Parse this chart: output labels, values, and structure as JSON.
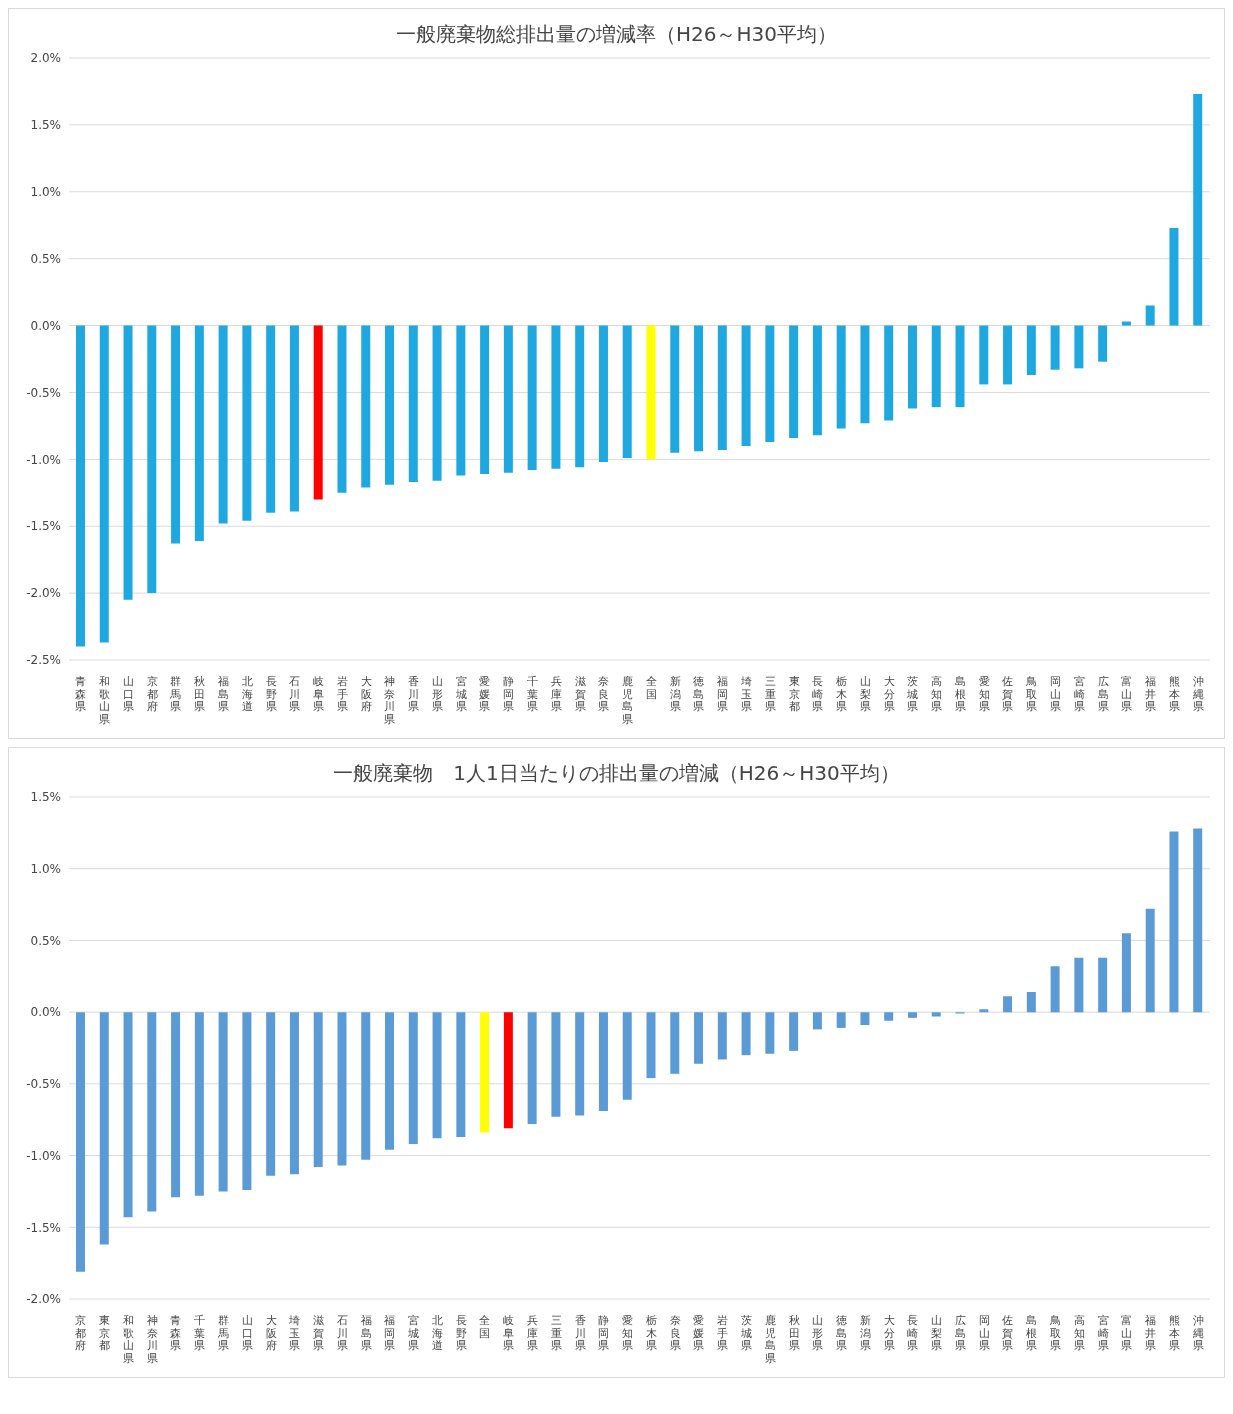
{
  "chart_data": [
    {
      "type": "bar",
      "title": "一般廃棄物総排出量の増減率（H26～H30平均）",
      "categories": [
        "青森県",
        "和歌山県",
        "山口県",
        "京都府",
        "群馬県",
        "秋田県",
        "福島県",
        "北海道",
        "長野県",
        "石川県",
        "岐阜県",
        "岩手県",
        "大阪府",
        "神奈川県",
        "香川県",
        "山形県",
        "宮城県",
        "愛媛県",
        "静岡県",
        "千葉県",
        "兵庫県",
        "滋賀県",
        "奈良県",
        "鹿児島県",
        "全国",
        "新潟県",
        "徳島県",
        "福岡県",
        "埼玉県",
        "三重県",
        "東京都",
        "長崎県",
        "栃木県",
        "山梨県",
        "大分県",
        "茨城県",
        "高知県",
        "島根県",
        "愛知県",
        "佐賀県",
        "鳥取県",
        "岡山県",
        "宮崎県",
        "広島県",
        "富山県",
        "福井県",
        "熊本県",
        "沖縄県"
      ],
      "values": [
        -2.4,
        -2.37,
        -2.05,
        -2.0,
        -1.63,
        -1.61,
        -1.48,
        -1.46,
        -1.4,
        -1.39,
        -1.3,
        -1.25,
        -1.21,
        -1.19,
        -1.17,
        -1.16,
        -1.12,
        -1.11,
        -1.1,
        -1.08,
        -1.07,
        -1.06,
        -1.02,
        -0.99,
        -1.0,
        -0.95,
        -0.94,
        -0.93,
        -0.9,
        -0.87,
        -0.84,
        -0.82,
        -0.77,
        -0.73,
        -0.71,
        -0.62,
        -0.61,
        -0.61,
        -0.44,
        -0.44,
        -0.37,
        -0.33,
        -0.32,
        -0.27,
        0.03,
        0.15,
        0.73,
        1.73
      ],
      "colors": [
        "#1fa8e0",
        "#1fa8e0",
        "#1fa8e0",
        "#1fa8e0",
        "#1fa8e0",
        "#1fa8e0",
        "#1fa8e0",
        "#1fa8e0",
        "#1fa8e0",
        "#1fa8e0",
        "#ff0000",
        "#1fa8e0",
        "#1fa8e0",
        "#1fa8e0",
        "#1fa8e0",
        "#1fa8e0",
        "#1fa8e0",
        "#1fa8e0",
        "#1fa8e0",
        "#1fa8e0",
        "#1fa8e0",
        "#1fa8e0",
        "#1fa8e0",
        "#1fa8e0",
        "#ffff00",
        "#1fa8e0",
        "#1fa8e0",
        "#1fa8e0",
        "#1fa8e0",
        "#1fa8e0",
        "#1fa8e0",
        "#1fa8e0",
        "#1fa8e0",
        "#1fa8e0",
        "#1fa8e0",
        "#1fa8e0",
        "#1fa8e0",
        "#1fa8e0",
        "#1fa8e0",
        "#1fa8e0",
        "#1fa8e0",
        "#1fa8e0",
        "#1fa8e0",
        "#1fa8e0",
        "#1fa8e0",
        "#1fa8e0",
        "#1fa8e0",
        "#1fa8e0"
      ],
      "ylim": [
        -2.5,
        2.0
      ],
      "yticks": [
        {
          "value": -2.5,
          "label": "-2.5%"
        },
        {
          "value": -2.0,
          "label": "-2.0%"
        },
        {
          "value": -1.5,
          "label": "-1.5%"
        },
        {
          "value": -1.0,
          "label": "-1.0%"
        },
        {
          "value": -0.5,
          "label": "-0.5%"
        },
        {
          "value": 0,
          "label": "0.0%"
        },
        {
          "value": 0.5,
          "label": "0.5%"
        },
        {
          "value": 1.0,
          "label": "1.0%"
        },
        {
          "value": 1.5,
          "label": "1.5%"
        },
        {
          "value": 2.0,
          "label": "2.0%"
        }
      ],
      "grid": "y"
    },
    {
      "type": "bar",
      "title": "一般廃棄物　1人1日当たりの排出量の増減（H26～H30平均）",
      "categories": [
        "京都府",
        "東京都",
        "和歌山県",
        "神奈川県",
        "青森県",
        "千葉県",
        "群馬県",
        "山口県",
        "大阪府",
        "埼玉県",
        "滋賀県",
        "石川県",
        "福島県",
        "福岡県",
        "宮城県",
        "北海道",
        "長野県",
        "全国",
        "岐阜県",
        "兵庫県",
        "三重県",
        "香川県",
        "静岡県",
        "愛知県",
        "栃木県",
        "奈良県",
        "愛媛県",
        "岩手県",
        "茨城県",
        "鹿児島県",
        "秋田県",
        "山形県",
        "徳島県",
        "新潟県",
        "大分県",
        "長崎県",
        "山梨県",
        "広島県",
        "岡山県",
        "佐賀県",
        "島根県",
        "鳥取県",
        "高知県",
        "宮崎県",
        "富山県",
        "福井県",
        "熊本県",
        "沖縄県"
      ],
      "values": [
        -1.81,
        -1.62,
        -1.43,
        -1.39,
        -1.29,
        -1.28,
        -1.25,
        -1.24,
        -1.14,
        -1.13,
        -1.08,
        -1.07,
        -1.03,
        -0.96,
        -0.92,
        -0.88,
        -0.87,
        -0.84,
        -0.81,
        -0.78,
        -0.73,
        -0.72,
        -0.69,
        -0.61,
        -0.46,
        -0.43,
        -0.36,
        -0.33,
        -0.3,
        -0.29,
        -0.27,
        -0.12,
        -0.11,
        -0.09,
        -0.06,
        -0.04,
        -0.03,
        -0.01,
        0.02,
        0.11,
        0.14,
        0.32,
        0.38,
        0.38,
        0.55,
        0.72,
        1.26,
        1.28
      ],
      "colors": [
        "#5b9bd5",
        "#5b9bd5",
        "#5b9bd5",
        "#5b9bd5",
        "#5b9bd5",
        "#5b9bd5",
        "#5b9bd5",
        "#5b9bd5",
        "#5b9bd5",
        "#5b9bd5",
        "#5b9bd5",
        "#5b9bd5",
        "#5b9bd5",
        "#5b9bd5",
        "#5b9bd5",
        "#5b9bd5",
        "#5b9bd5",
        "#ffff00",
        "#ff0000",
        "#5b9bd5",
        "#5b9bd5",
        "#5b9bd5",
        "#5b9bd5",
        "#5b9bd5",
        "#5b9bd5",
        "#5b9bd5",
        "#5b9bd5",
        "#5b9bd5",
        "#5b9bd5",
        "#5b9bd5",
        "#5b9bd5",
        "#5b9bd5",
        "#5b9bd5",
        "#5b9bd5",
        "#5b9bd5",
        "#5b9bd5",
        "#5b9bd5",
        "#5b9bd5",
        "#5b9bd5",
        "#5b9bd5",
        "#5b9bd5",
        "#5b9bd5",
        "#5b9bd5",
        "#5b9bd5",
        "#5b9bd5",
        "#5b9bd5",
        "#5b9bd5",
        "#5b9bd5"
      ],
      "ylim": [
        -2.0,
        1.5
      ],
      "yticks": [
        {
          "value": -2.0,
          "label": "-2.0%"
        },
        {
          "value": -1.5,
          "label": "-1.5%"
        },
        {
          "value": -1.0,
          "label": "-1.0%"
        },
        {
          "value": -0.5,
          "label": "-0.5%"
        },
        {
          "value": 0,
          "label": "0.0%"
        },
        {
          "value": 0.5,
          "label": "0.5%"
        },
        {
          "value": 1.0,
          "label": "1.0%"
        },
        {
          "value": 1.5,
          "label": "1.5%"
        }
      ],
      "grid": "y"
    }
  ]
}
